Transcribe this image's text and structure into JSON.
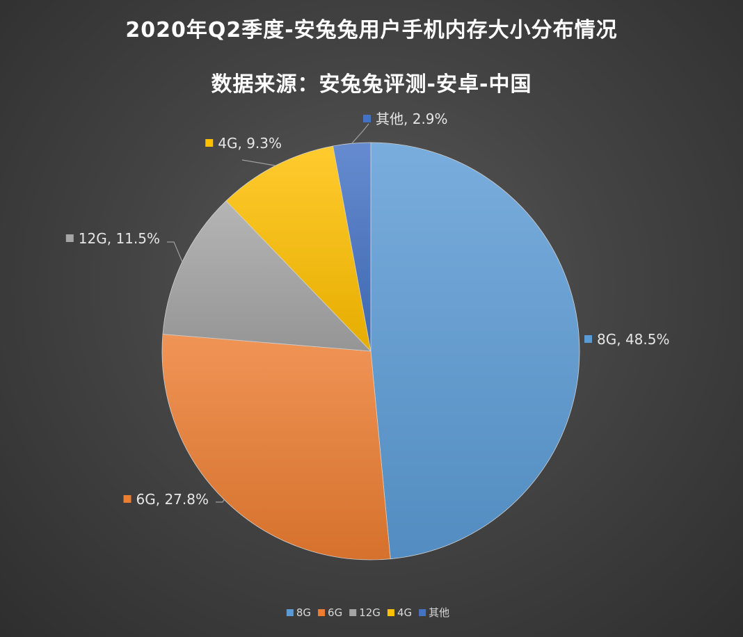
{
  "chart_data": {
    "type": "pie",
    "title": "2020年Q2季度-安兔兔用户手机内存大小分布情况",
    "subtitle": "数据来源：安兔兔评测-安卓-中国",
    "categories": [
      "8G",
      "6G",
      "12G",
      "4G",
      "其他"
    ],
    "values": [
      48.5,
      27.8,
      11.5,
      9.3,
      2.9
    ],
    "data_labels": [
      "8G, 48.5%",
      "6G, 27.8%",
      "12G, 11.5%",
      "4G, 9.3%",
      "其他, 2.9%"
    ],
    "colors": [
      "#5b9bd5",
      "#ed7d31",
      "#a5a5a5",
      "#ffc000",
      "#4472c4"
    ],
    "legend": "bottom",
    "start_angle": "12 o'clock, clockwise"
  }
}
